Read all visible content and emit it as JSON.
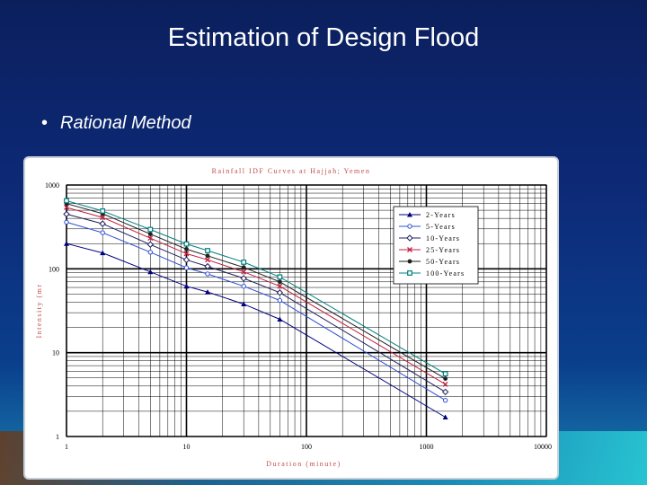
{
  "slide": {
    "title": "Estimation of Design Flood",
    "bullet": "Rational Method",
    "bullet_symbol": "•"
  },
  "colors": {
    "background": "#0d2a78",
    "title": "#ffffff",
    "axis_label": "#c0504d"
  },
  "chart_data": {
    "type": "line",
    "title": "Rainfall IDF Curves at Hajjah; Yemen",
    "xlabel": "Duration (minute)",
    "ylabel": "Intensity (mr",
    "x_scale": "log",
    "y_scale": "log",
    "xlim": [
      1,
      10000
    ],
    "ylim": [
      1,
      1000
    ],
    "x_ticks": [
      "1",
      "10",
      "100",
      "1000",
      "10000"
    ],
    "y_ticks": [
      "1",
      "10",
      "100",
      "1000"
    ],
    "grid": true,
    "legend_position": "top-right",
    "x": [
      1,
      2,
      5,
      10,
      15,
      30,
      60,
      1440
    ],
    "series": [
      {
        "name": "2-Years",
        "color": "#000080",
        "marker": "triangle",
        "values": [
          200,
          155,
          92,
          62,
          53,
          38,
          25,
          1.7
        ]
      },
      {
        "name": "5-Years",
        "color": "#3050d0",
        "marker": "circle",
        "values": [
          360,
          270,
          158,
          103,
          87,
          62,
          42,
          2.7
        ]
      },
      {
        "name": "10-Years",
        "color": "#202060",
        "marker": "diamond",
        "values": [
          450,
          345,
          195,
          128,
          107,
          77,
          52,
          3.4
        ]
      },
      {
        "name": "25-Years",
        "color": "#c02040",
        "marker": "x",
        "values": [
          540,
          410,
          232,
          152,
          128,
          92,
          62,
          4.2
        ]
      },
      {
        "name": "50-Years",
        "color": "#202020",
        "marker": "dot",
        "values": [
          600,
          455,
          260,
          172,
          143,
          104,
          70,
          4.9
        ]
      },
      {
        "name": "100-Years",
        "color": "#008080",
        "marker": "square",
        "values": [
          650,
          490,
          295,
          198,
          165,
          120,
          80,
          5.6
        ]
      }
    ]
  }
}
